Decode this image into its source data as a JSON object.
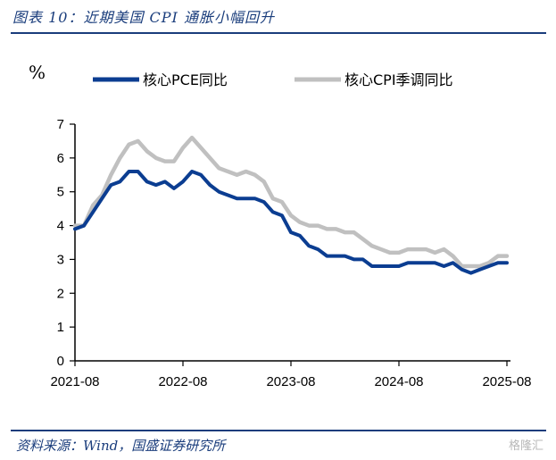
{
  "figure": {
    "title": "图表 10：近期美国 CPI 通胀小幅回升",
    "source": "资料来源：Wind，国盛证券研究所",
    "watermark": "格隆汇"
  },
  "colors": {
    "core_pce": "#0b3d91",
    "core_cpi": "#c0c0c0",
    "accent": "#1a3d7c"
  },
  "chart_data": {
    "type": "line",
    "unit": "%",
    "ylim": [
      0,
      7
    ],
    "yticks": [
      0,
      1,
      2,
      3,
      4,
      5,
      6,
      7
    ],
    "xtick_labels": [
      "2021-08",
      "2022-08",
      "2023-08",
      "2024-08",
      "2025-08"
    ],
    "x": [
      "2021-08",
      "2021-09",
      "2021-10",
      "2021-11",
      "2021-12",
      "2022-01",
      "2022-02",
      "2022-03",
      "2022-04",
      "2022-05",
      "2022-06",
      "2022-07",
      "2022-08",
      "2022-09",
      "2022-10",
      "2022-11",
      "2022-12",
      "2023-01",
      "2023-02",
      "2023-03",
      "2023-04",
      "2023-05",
      "2023-06",
      "2023-07",
      "2023-08",
      "2023-09",
      "2023-10",
      "2023-11",
      "2023-12",
      "2024-01",
      "2024-02",
      "2024-03",
      "2024-04",
      "2024-05",
      "2024-06",
      "2024-07",
      "2024-08",
      "2024-09",
      "2024-10",
      "2024-11",
      "2024-12",
      "2025-01",
      "2025-02",
      "2025-03",
      "2025-04",
      "2025-05",
      "2025-06",
      "2025-07",
      "2025-08"
    ],
    "grid": false,
    "legend_position": "top",
    "series": [
      {
        "name": "核心PCE同比",
        "color": "#0b3d91",
        "values": [
          3.9,
          4.0,
          4.4,
          4.8,
          5.2,
          5.3,
          5.6,
          5.6,
          5.3,
          5.2,
          5.3,
          5.1,
          5.3,
          5.6,
          5.5,
          5.2,
          5.0,
          4.9,
          4.8,
          4.8,
          4.8,
          4.7,
          4.4,
          4.3,
          3.8,
          3.7,
          3.4,
          3.3,
          3.1,
          3.1,
          3.1,
          3.0,
          3.0,
          2.8,
          2.8,
          2.8,
          2.8,
          2.9,
          2.9,
          2.9,
          2.9,
          2.8,
          2.9,
          2.7,
          2.6,
          2.7,
          2.8,
          2.9,
          2.9
        ]
      },
      {
        "name": "核心CPI季调同比",
        "color": "#c0c0c0",
        "values": [
          4.0,
          4.0,
          4.6,
          4.9,
          5.5,
          6.0,
          6.4,
          6.5,
          6.2,
          6.0,
          5.9,
          5.9,
          6.3,
          6.6,
          6.3,
          6.0,
          5.7,
          5.6,
          5.5,
          5.6,
          5.5,
          5.3,
          4.8,
          4.7,
          4.3,
          4.1,
          4.0,
          4.0,
          3.9,
          3.9,
          3.8,
          3.8,
          3.6,
          3.4,
          3.3,
          3.2,
          3.2,
          3.3,
          3.3,
          3.3,
          3.2,
          3.3,
          3.1,
          2.8,
          2.8,
          2.8,
          2.9,
          3.1,
          3.1
        ]
      }
    ]
  }
}
